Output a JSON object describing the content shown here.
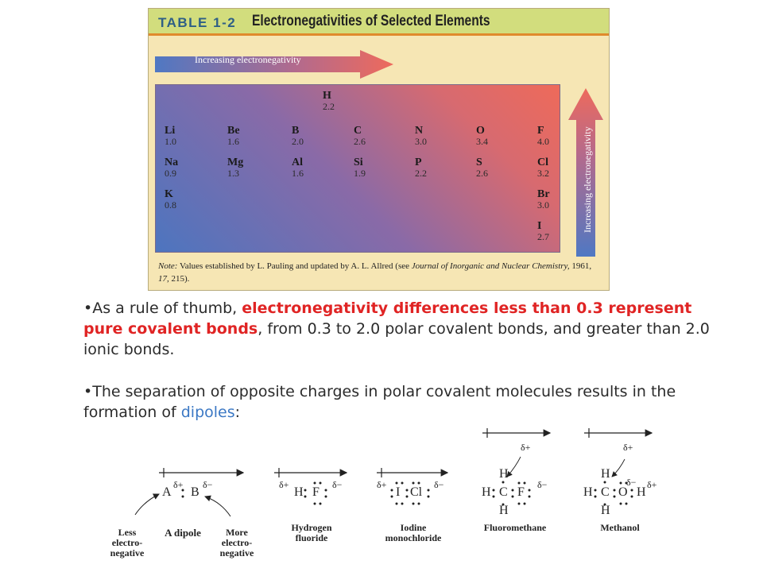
{
  "table": {
    "tag": "TABLE 1-2",
    "title": "Electronegativities of Selected Elements",
    "horizontal_arrow_label": "Increasing electronegativity",
    "vertical_arrow_label": "Increasing electronegativity",
    "elements": [
      {
        "symbol": "H",
        "value": "2.2"
      },
      {
        "symbol": "Li",
        "value": "1.0"
      },
      {
        "symbol": "Be",
        "value": "1.6"
      },
      {
        "symbol": "B",
        "value": "2.0"
      },
      {
        "symbol": "C",
        "value": "2.6"
      },
      {
        "symbol": "N",
        "value": "3.0"
      },
      {
        "symbol": "O",
        "value": "3.4"
      },
      {
        "symbol": "F",
        "value": "4.0"
      },
      {
        "symbol": "Na",
        "value": "0.9"
      },
      {
        "symbol": "Mg",
        "value": "1.3"
      },
      {
        "symbol": "Al",
        "value": "1.6"
      },
      {
        "symbol": "Si",
        "value": "1.9"
      },
      {
        "symbol": "P",
        "value": "2.2"
      },
      {
        "symbol": "S",
        "value": "2.6"
      },
      {
        "symbol": "Cl",
        "value": "3.2"
      },
      {
        "symbol": "K",
        "value": "0.8"
      },
      {
        "symbol": "Br",
        "value": "3.0"
      },
      {
        "symbol": "I",
        "value": "2.7"
      }
    ],
    "note": {
      "label": "Note:",
      "text_1": " Values established by L. Pauling and updated by A. L. Allred (see ",
      "journal": "Journal of Inorganic and Nuclear Chemistry,",
      "text_2": " 1961, ",
      "volume": "17,",
      "text_3": " 215)."
    }
  },
  "bullets": {
    "b1_prefix": "•As a rule of thumb, ",
    "b1_highlight": "electronegativity differences less than 0.3 represent pure covalent bonds",
    "b1_suffix": ", from 0.3 to 2.0 polar covalent bonds, and greater than 2.0 ionic bonds.",
    "b2_prefix": "•The separation of opposite charges in polar covalent molecules results in the formation of ",
    "b2_highlight": "dipoles",
    "b2_suffix": ":"
  },
  "diagrams": {
    "delta_plus": "δ+",
    "delta_minus": "δ−",
    "dipole": {
      "atom_a": "A",
      "atom_b": "B",
      "caption": "A dipole",
      "left_caption": "Less electro- negative",
      "right_caption": "More electro- negative"
    },
    "hf": {
      "left": "H",
      "right": "F",
      "caption": "Hydrogen fluoride"
    },
    "icl": {
      "left": "I",
      "right": "Cl",
      "caption": "Iodine monochloride"
    },
    "ch3f": {
      "center": "C",
      "right": "F",
      "h": "H",
      "caption": "Fluoromethane"
    },
    "ch3oh": {
      "center": "C",
      "o": "O",
      "h": "H",
      "caption": "Methanol"
    }
  },
  "colors": {
    "highlight_red": "#e02424",
    "highlight_blue": "#3b78c4",
    "delta_plus": "#2aa2d8",
    "delta_minus": "#d6208a"
  }
}
